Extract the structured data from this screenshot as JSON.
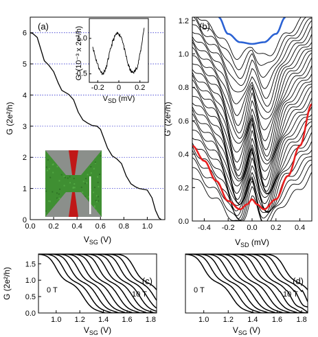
{
  "chart_data": [
    {
      "panel": "(a)",
      "type": "line",
      "xlabel_main": "V",
      "xlabel_sub": "SG",
      "xlabel_unit": " (V)",
      "ylabel": "G (2e²/h)",
      "xlim": [
        0.0,
        1.15
      ],
      "ylim": [
        0,
        6.5
      ],
      "xticks": [
        "0.0",
        "0.2",
        "0.4",
        "0.6",
        "0.8",
        "1.0"
      ],
      "yticks": [
        "0",
        "1",
        "2",
        "3",
        "4",
        "5",
        "6"
      ],
      "plateau_guides": [
        1,
        2,
        3,
        4,
        5,
        6
      ],
      "series": [
        {
          "x": [
            0.0,
            0.02,
            0.06,
            0.12,
            0.16,
            0.2,
            0.24,
            0.27,
            0.33,
            0.37,
            0.41,
            0.45,
            0.49,
            0.53,
            0.57,
            0.6,
            0.66,
            0.7,
            0.74,
            0.78,
            0.82,
            0.86,
            0.9,
            0.93,
            1.0,
            1.04,
            1.07,
            1.1,
            1.12
          ],
          "y": [
            6.0,
            5.98,
            5.85,
            5.1,
            4.95,
            4.75,
            4.38,
            4.15,
            4.02,
            3.85,
            3.45,
            3.2,
            3.1,
            3.02,
            3.0,
            2.9,
            2.3,
            2.05,
            1.95,
            1.8,
            1.4,
            1.15,
            1.05,
            1.0,
            0.95,
            0.7,
            0.3,
            0.05,
            0.0
          ]
        }
      ]
    },
    {
      "panel": "(a) inset",
      "type": "line",
      "xlabel_main": "V",
      "xlabel_sub": "SD",
      "xlabel_unit": " (mV)",
      "ylabel": "G' (10⁻³ x 2e²/h)",
      "xlim": [
        -0.28,
        0.28
      ],
      "ylim": [
        0.38,
        1.28
      ],
      "xticks": [
        "-0.2",
        "0",
        "0.2"
      ],
      "yticks": [
        "0.5",
        "1.0"
      ],
      "series": [
        {
          "x": [
            -0.25,
            -0.22,
            -0.18,
            -0.15,
            -0.12,
            -0.09,
            -0.06,
            -0.03,
            0.0,
            0.03,
            0.06,
            0.09,
            0.12,
            0.15,
            0.18,
            0.21,
            0.24
          ],
          "y": [
            0.9,
            0.72,
            0.55,
            0.5,
            0.58,
            0.78,
            0.95,
            1.05,
            1.07,
            1.0,
            0.8,
            0.62,
            0.52,
            0.53,
            0.62,
            0.85,
            1.15
          ]
        }
      ]
    },
    {
      "panel": "(b)",
      "type": "line",
      "xlabel_main": "V",
      "xlabel_sub": "SD",
      "xlabel_unit": " (mV)",
      "ylabel": "G' (2e²/h)",
      "xlim": [
        -0.5,
        0.5
      ],
      "ylim": [
        0,
        1.22
      ],
      "xticks": [
        "-0.4",
        "-0.2",
        "0.0",
        "0.2",
        "0.4"
      ],
      "yticks": [
        "0.0",
        "0.2",
        "0.4",
        "0.6",
        "0.8",
        "1.0",
        "1.2"
      ],
      "series": [
        {
          "highlight": "#2b62d4",
          "x": [
            -0.28,
            -0.2,
            -0.1,
            0.0,
            0.1,
            0.2,
            0.28
          ],
          "y": [
            1.22,
            1.12,
            1.07,
            1.06,
            1.07,
            1.12,
            1.22
          ]
        },
        {
          "highlight": "#e82020",
          "x": [
            -0.5,
            -0.4,
            -0.3,
            -0.2,
            -0.1,
            -0.04,
            0.0,
            0.04,
            0.1,
            0.2,
            0.3,
            0.4,
            0.5
          ],
          "y": [
            0.45,
            0.36,
            0.24,
            0.12,
            0.07,
            0.1,
            0.13,
            0.1,
            0.07,
            0.13,
            0.27,
            0.45,
            0.7
          ]
        }
      ]
    },
    {
      "panel": "(c)",
      "type": "line",
      "xlabel_main": "V",
      "xlabel_sub": "SG",
      "xlabel_unit": " (V)",
      "ylabel": "G (2e²/h)",
      "xlim": [
        0.85,
        1.85
      ],
      "ylim": [
        0,
        1.8
      ],
      "xticks": [
        "1.0",
        "1.2",
        "1.4",
        "1.6",
        "1.8"
      ],
      "yticks": [
        "0.0",
        "0.5",
        "1.0",
        "1.5"
      ],
      "annotations": [
        "0 T",
        "10 T"
      ]
    },
    {
      "panel": "(d)",
      "type": "line",
      "xlabel_main": "V",
      "xlabel_sub": "SG",
      "xlabel_unit": " (V)",
      "xlim": [
        0.85,
        1.85
      ],
      "ylim": [
        0,
        1.8
      ],
      "xticks": [
        "1.0",
        "1.2",
        "1.4",
        "1.6",
        "1.8"
      ],
      "annotations": [
        "0 T",
        "10 T"
      ]
    }
  ]
}
